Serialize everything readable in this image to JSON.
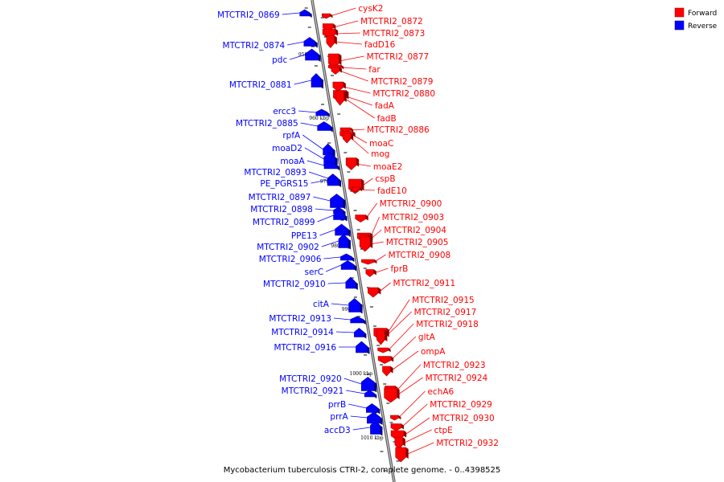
{
  "caption": "Mycobacterium tuberculosis CTRI-2, complete genome. - 0..4398525",
  "legend": [
    {
      "label": "Forward",
      "color": "#ff0000"
    },
    {
      "label": "Reverse",
      "color": "#0000ff"
    }
  ],
  "colors": {
    "forward": "#ff0000",
    "reverse": "#0000ff",
    "backbone": "#888888"
  },
  "scale_ticks": [
    "950 kbp",
    "960 kbp",
    "970 kbp",
    "980 kbp",
    "990 kbp",
    "1000 kbp",
    "1010 kbp"
  ],
  "reverse_genes": [
    "MTCTRI2_0869",
    "MTCTRI2_0874",
    "pdc",
    "MTCTRI2_0881",
    "ercc3",
    "MTCTRI2_0885",
    "rpfA",
    "moaD2",
    "moaA",
    "MTCTRI2_0893",
    "PE_PGRS15",
    "MTCTRI2_0897",
    "MTCTRI2_0898",
    "MTCTRI2_0899",
    "PPE13",
    "MTCTRI2_0902",
    "MTCTRI2_0906",
    "serC",
    "MTCTRI2_0910",
    "citA",
    "MTCTRI2_0913",
    "MTCTRI2_0914",
    "MTCTRI2_0916",
    "MTCTRI2_0920",
    "MTCTRI2_0921",
    "prrB",
    "prrA",
    "accD3"
  ],
  "forward_genes": [
    "cysK2",
    "MTCTRI2_0872",
    "MTCTRI2_0873",
    "fadD16",
    "MTCTRI2_0877",
    "far",
    "MTCTRI2_0879",
    "MTCTRI2_0880",
    "fadA",
    "fadB",
    "MTCTRI2_0886",
    "moaC",
    "mog",
    "moaE2",
    "cspB",
    "fadE10",
    "MTCTRI2_0900",
    "MTCTRI2_0903",
    "MTCTRI2_0904",
    "MTCTRI2_0905",
    "MTCTRI2_0908",
    "fprB",
    "MTCTRI2_0911",
    "MTCTRI2_0915",
    "MTCTRI2_0917",
    "MTCTRI2_0918",
    "gltA",
    "ompA",
    "MTCTRI2_0923",
    "MTCTRI2_0924",
    "echA6",
    "MTCTRI2_0929",
    "MTCTRI2_0930",
    "ctpE",
    "MTCTRI2_0932"
  ]
}
